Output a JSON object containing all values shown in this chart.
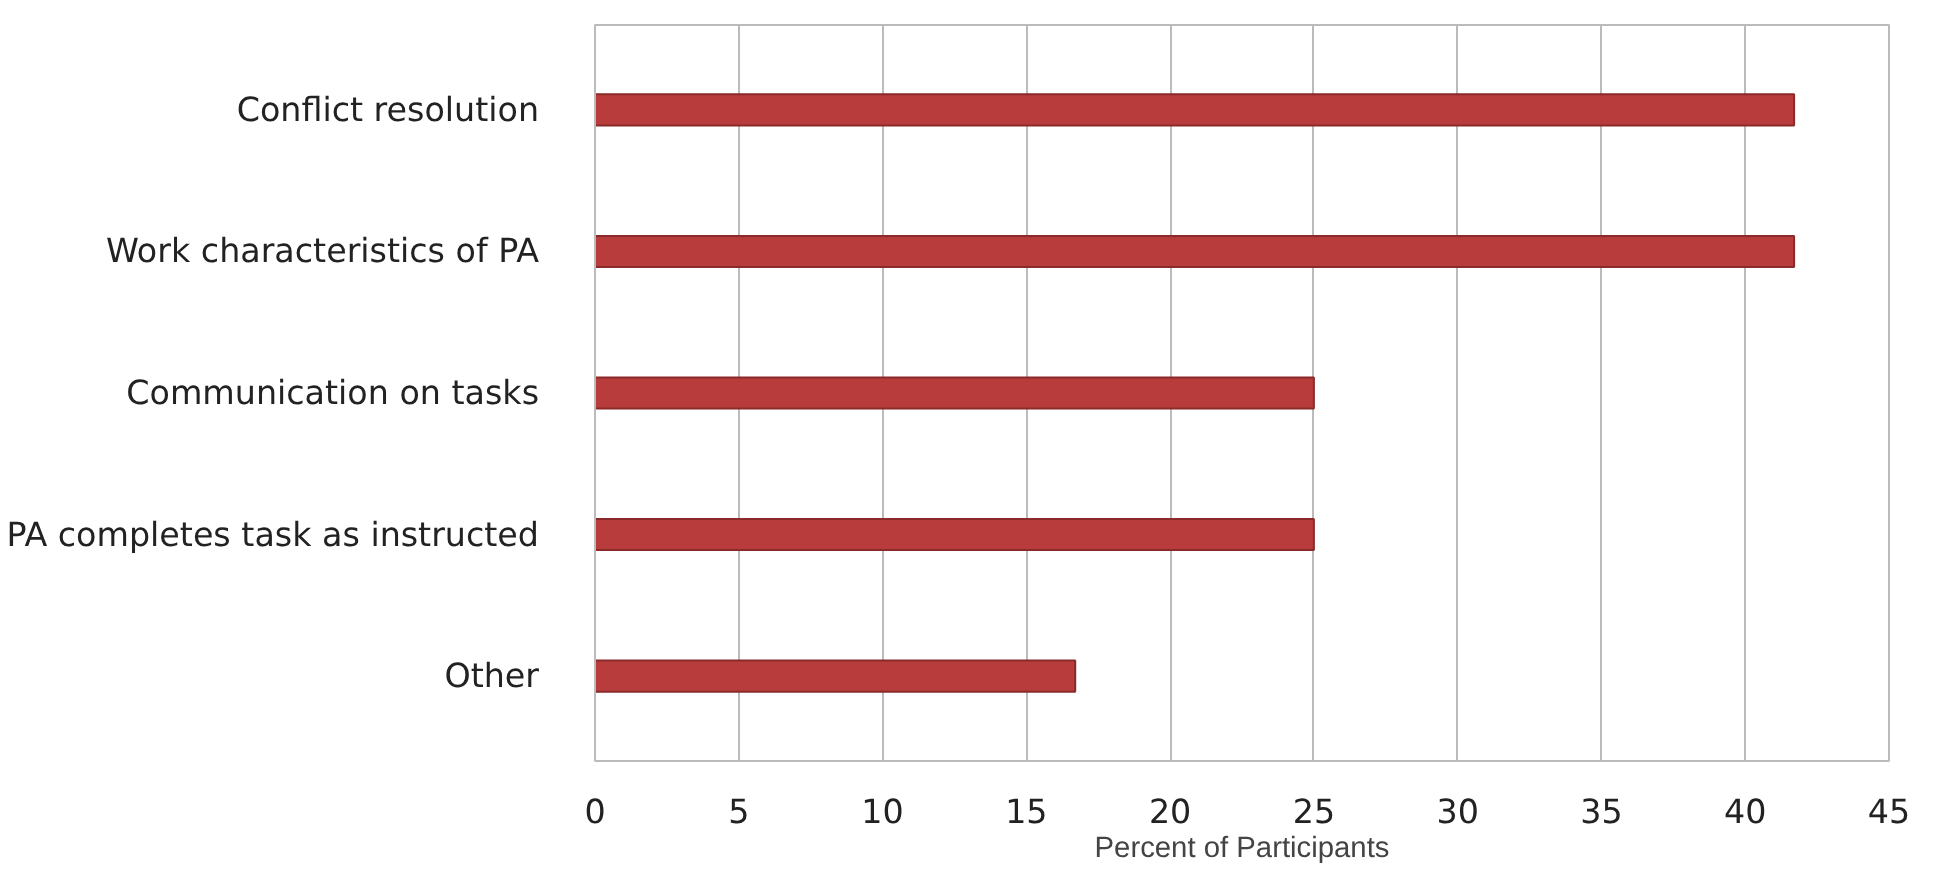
{
  "chart_data": {
    "type": "bar",
    "orientation": "horizontal",
    "xlabel": "Percent of Participants",
    "categories": [
      "Conflict resolution",
      "Work characteristics of PA",
      "Communication on tasks",
      "PA completes task as instructed",
      "Other"
    ],
    "values": [
      41.7,
      41.7,
      25,
      25,
      16.7
    ],
    "color": "#b83c3c",
    "xlim": [
      0,
      45
    ],
    "xticks": [
      0,
      5,
      10,
      15,
      20,
      25,
      30,
      35,
      40,
      45
    ],
    "grid": "x"
  }
}
